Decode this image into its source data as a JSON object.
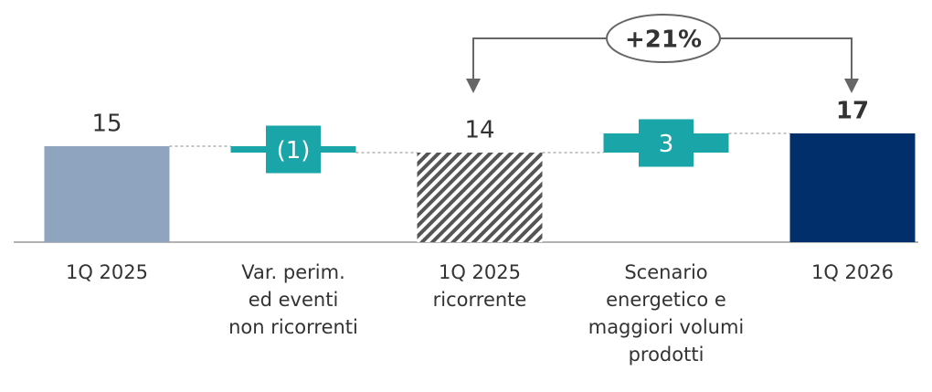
{
  "chart_data": {
    "type": "waterfall",
    "categories": [
      "1Q 2025",
      "Var. perim.\ned eventi\nnon ricorrenti",
      "1Q 2025\nricorrente",
      "Scenario\nenergetico e\nmaggiori volumi\nprodotti",
      "1Q 2026"
    ],
    "measures": [
      "total",
      "relative",
      "total",
      "relative",
      "total"
    ],
    "values": [
      15,
      -1,
      14,
      3,
      17
    ],
    "value_labels": [
      "15",
      "(1)",
      "14",
      "3",
      "17"
    ],
    "colors": [
      "#8fa4bf",
      "#1aa5a9",
      "#555555",
      "#1aa5a9",
      "#002f6c"
    ],
    "hatch": [
      false,
      false,
      true,
      false,
      false
    ],
    "ylim": [
      0,
      20
    ],
    "annotation": "+21%"
  }
}
